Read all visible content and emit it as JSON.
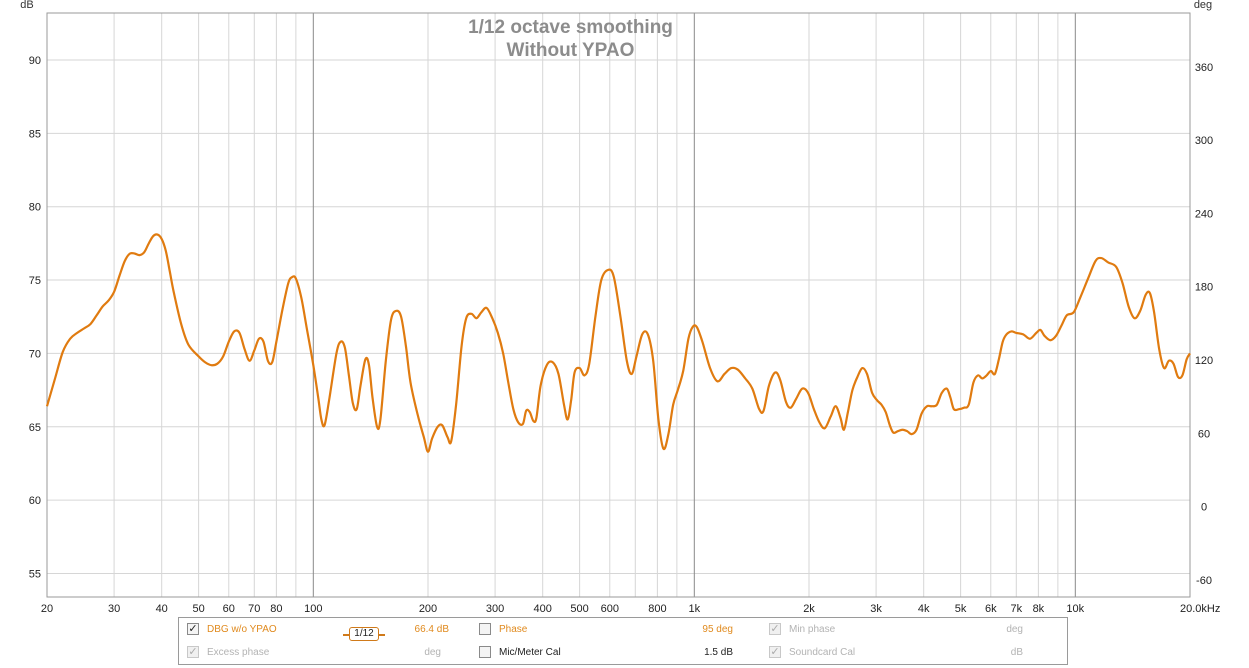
{
  "chart_data": {
    "type": "line",
    "title": "1/12 octave smoothing",
    "subtitle": "Without YPAO",
    "ylabel": "dB",
    "y2label": "deg",
    "xscale": "log",
    "xlim": [
      20,
      20000
    ],
    "ylim": [
      53.4,
      93.2
    ],
    "y2lim": [
      -74,
      404
    ],
    "yticks": [
      55,
      60,
      65,
      70,
      75,
      80,
      85,
      90
    ],
    "y2ticks": [
      -60,
      0,
      60,
      120,
      180,
      240,
      300,
      360
    ],
    "xticks": [
      {
        "v": 20,
        "l": "20"
      },
      {
        "v": 30,
        "l": "30"
      },
      {
        "v": 40,
        "l": "40"
      },
      {
        "v": 50,
        "l": "50"
      },
      {
        "v": 60,
        "l": "60"
      },
      {
        "v": 70,
        "l": "70"
      },
      {
        "v": 80,
        "l": "80"
      },
      {
        "v": 100,
        "l": "100"
      },
      {
        "v": 200,
        "l": "200"
      },
      {
        "v": 300,
        "l": "300"
      },
      {
        "v": 400,
        "l": "400"
      },
      {
        "v": 500,
        "l": "500"
      },
      {
        "v": 600,
        "l": "600"
      },
      {
        "v": 800,
        "l": "800"
      },
      {
        "v": 1000,
        "l": "1k"
      },
      {
        "v": 2000,
        "l": "2k"
      },
      {
        "v": 3000,
        "l": "3k"
      },
      {
        "v": 4000,
        "l": "4k"
      },
      {
        "v": 5000,
        "l": "5k"
      },
      {
        "v": 6000,
        "l": "6k"
      },
      {
        "v": 7000,
        "l": "7k"
      },
      {
        "v": 8000,
        "l": "8k"
      },
      {
        "v": 10000,
        "l": "10k"
      },
      {
        "v": 20000,
        "l": "20.0kHz"
      }
    ],
    "grid": true,
    "legend_position": "bottom",
    "series": [
      {
        "name": "DBG w/o YPAO",
        "color": "#e07b10",
        "points": [
          [
            20,
            66.4
          ],
          [
            21,
            68.3
          ],
          [
            22,
            70.1
          ],
          [
            23,
            71
          ],
          [
            24,
            71.4
          ],
          [
            25,
            71.7
          ],
          [
            26,
            72
          ],
          [
            27,
            72.6
          ],
          [
            28,
            73.2
          ],
          [
            29,
            73.6
          ],
          [
            30,
            74.2
          ],
          [
            31,
            75.3
          ],
          [
            32,
            76.3
          ],
          [
            33,
            76.8
          ],
          [
            34,
            76.8
          ],
          [
            35,
            76.7
          ],
          [
            36,
            76.9
          ],
          [
            37,
            77.5
          ],
          [
            38,
            78
          ],
          [
            39,
            78.1
          ],
          [
            40,
            77.8
          ],
          [
            41,
            77
          ],
          [
            42,
            75.6
          ],
          [
            43,
            74.2
          ],
          [
            45,
            72
          ],
          [
            47,
            70.6
          ],
          [
            50,
            69.8
          ],
          [
            52,
            69.4
          ],
          [
            54,
            69.2
          ],
          [
            56,
            69.3
          ],
          [
            58,
            69.8
          ],
          [
            60,
            70.8
          ],
          [
            62,
            71.5
          ],
          [
            64,
            71.4
          ],
          [
            66,
            70.3
          ],
          [
            68,
            69.5
          ],
          [
            70,
            70.2
          ],
          [
            72,
            71
          ],
          [
            74,
            70.8
          ],
          [
            76,
            69.5
          ],
          [
            78,
            69.4
          ],
          [
            80,
            70.8
          ],
          [
            83,
            73
          ],
          [
            86,
            74.8
          ],
          [
            88,
            75.2
          ],
          [
            90,
            75.1
          ],
          [
            93,
            73.8
          ],
          [
            96,
            71.8
          ],
          [
            100,
            69.2
          ],
          [
            103,
            67
          ],
          [
            105,
            65.5
          ],
          [
            107,
            65.1
          ],
          [
            110,
            66.8
          ],
          [
            115,
            70
          ],
          [
            118,
            70.8
          ],
          [
            121,
            70.4
          ],
          [
            124,
            68.5
          ],
          [
            127,
            66.6
          ],
          [
            130,
            66.2
          ],
          [
            133,
            67.8
          ],
          [
            137,
            69.6
          ],
          [
            140,
            69.2
          ],
          [
            143,
            67
          ],
          [
            147,
            65
          ],
          [
            150,
            65.5
          ],
          [
            155,
            69.5
          ],
          [
            160,
            72.3
          ],
          [
            165,
            72.9
          ],
          [
            170,
            72.5
          ],
          [
            175,
            70.5
          ],
          [
            180,
            68
          ],
          [
            188,
            65.8
          ],
          [
            195,
            64.3
          ],
          [
            200,
            63.3
          ],
          [
            205,
            64.2
          ],
          [
            212,
            65
          ],
          [
            218,
            65.1
          ],
          [
            225,
            64.3
          ],
          [
            230,
            64
          ],
          [
            237,
            66.5
          ],
          [
            245,
            70.5
          ],
          [
            252,
            72.4
          ],
          [
            260,
            72.7
          ],
          [
            268,
            72.4
          ],
          [
            276,
            72.8
          ],
          [
            285,
            73.1
          ],
          [
            295,
            72.4
          ],
          [
            305,
            71.4
          ],
          [
            315,
            70
          ],
          [
            325,
            68
          ],
          [
            335,
            66.2
          ],
          [
            345,
            65.3
          ],
          [
            355,
            65.2
          ],
          [
            362,
            66.1
          ],
          [
            370,
            66
          ],
          [
            378,
            65.4
          ],
          [
            385,
            65.6
          ],
          [
            395,
            67.8
          ],
          [
            410,
            69.2
          ],
          [
            425,
            69.4
          ],
          [
            440,
            68.6
          ],
          [
            455,
            66.5
          ],
          [
            465,
            65.5
          ],
          [
            475,
            66.8
          ],
          [
            485,
            68.7
          ],
          [
            500,
            69
          ],
          [
            515,
            68.5
          ],
          [
            530,
            69.3
          ],
          [
            550,
            72.5
          ],
          [
            570,
            75
          ],
          [
            595,
            75.7
          ],
          [
            615,
            75.2
          ],
          [
            640,
            72.5
          ],
          [
            665,
            69.5
          ],
          [
            685,
            68.6
          ],
          [
            705,
            69.8
          ],
          [
            730,
            71.3
          ],
          [
            755,
            71.3
          ],
          [
            780,
            69.5
          ],
          [
            805,
            65.5
          ],
          [
            830,
            63.5
          ],
          [
            855,
            64.5
          ],
          [
            880,
            66.5
          ],
          [
            905,
            67.5
          ],
          [
            935,
            68.8
          ],
          [
            965,
            71
          ],
          [
            990,
            71.8
          ],
          [
            1015,
            71.8
          ],
          [
            1050,
            70.8
          ],
          [
            1100,
            69
          ],
          [
            1150,
            68.1
          ],
          [
            1200,
            68.6
          ],
          [
            1250,
            69
          ],
          [
            1300,
            68.9
          ],
          [
            1360,
            68.3
          ],
          [
            1420,
            67.6
          ],
          [
            1480,
            66.2
          ],
          [
            1520,
            66.1
          ],
          [
            1570,
            67.8
          ],
          [
            1630,
            68.7
          ],
          [
            1680,
            68.2
          ],
          [
            1740,
            66.7
          ],
          [
            1790,
            66.3
          ],
          [
            1850,
            66.9
          ],
          [
            1920,
            67.6
          ],
          [
            1990,
            67.3
          ],
          [
            2060,
            66.2
          ],
          [
            2130,
            65.3
          ],
          [
            2200,
            64.9
          ],
          [
            2280,
            65.7
          ],
          [
            2350,
            66.4
          ],
          [
            2420,
            65.6
          ],
          [
            2470,
            64.8
          ],
          [
            2530,
            66
          ],
          [
            2600,
            67.5
          ],
          [
            2680,
            68.4
          ],
          [
            2760,
            69
          ],
          [
            2840,
            68.6
          ],
          [
            2930,
            67.3
          ],
          [
            3020,
            66.8
          ],
          [
            3100,
            66.5
          ],
          [
            3180,
            66
          ],
          [
            3260,
            65.1
          ],
          [
            3330,
            64.6
          ],
          [
            3420,
            64.7
          ],
          [
            3520,
            64.8
          ],
          [
            3620,
            64.7
          ],
          [
            3720,
            64.5
          ],
          [
            3830,
            64.8
          ],
          [
            3950,
            65.9
          ],
          [
            4080,
            66.4
          ],
          [
            4200,
            66.4
          ],
          [
            4330,
            66.5
          ],
          [
            4460,
            67.3
          ],
          [
            4600,
            67.6
          ],
          [
            4700,
            67
          ],
          [
            4800,
            66.2
          ],
          [
            4950,
            66.2
          ],
          [
            5100,
            66.3
          ],
          [
            5250,
            66.5
          ],
          [
            5400,
            68
          ],
          [
            5550,
            68.5
          ],
          [
            5700,
            68.3
          ],
          [
            5850,
            68.5
          ],
          [
            6000,
            68.8
          ],
          [
            6150,
            68.6
          ],
          [
            6300,
            69.6
          ],
          [
            6450,
            70.8
          ],
          [
            6600,
            71.3
          ],
          [
            6800,
            71.5
          ],
          [
            7000,
            71.4
          ],
          [
            7300,
            71.3
          ],
          [
            7600,
            71
          ],
          [
            7900,
            71.4
          ],
          [
            8100,
            71.6
          ],
          [
            8300,
            71.2
          ],
          [
            8600,
            70.9
          ],
          [
            8900,
            71.2
          ],
          [
            9200,
            71.9
          ],
          [
            9500,
            72.6
          ],
          [
            9900,
            72.8
          ],
          [
            10300,
            73.8
          ],
          [
            10800,
            75.1
          ],
          [
            11300,
            76.3
          ],
          [
            11700,
            76.5
          ],
          [
            12200,
            76.2
          ],
          [
            12800,
            75.9
          ],
          [
            13300,
            74.8
          ],
          [
            13800,
            73.2
          ],
          [
            14300,
            72.4
          ],
          [
            14800,
            72.9
          ],
          [
            15300,
            74
          ],
          [
            15700,
            74.1
          ],
          [
            16100,
            72.8
          ],
          [
            16600,
            70.3
          ],
          [
            17100,
            69
          ],
          [
            17600,
            69.5
          ],
          [
            18100,
            69.3
          ],
          [
            18600,
            68.4
          ],
          [
            19100,
            68.5
          ],
          [
            19600,
            69.6
          ],
          [
            20000,
            70
          ]
        ]
      }
    ]
  },
  "legend": {
    "row1": {
      "trace_label": "DBG w/o YPAO",
      "smoothing_label": "1/12",
      "trace_value": "66.4 dB",
      "phase_label": "Phase",
      "phase_value": "95 deg",
      "min_phase_label": "Min phase",
      "min_phase_value": "deg"
    },
    "row2": {
      "excess_label": "Excess phase",
      "excess_value": "deg",
      "mic_label": "Mic/Meter Cal",
      "mic_value": "1.5 dB",
      "soundcard_label": "Soundcard Cal",
      "soundcard_value": "dB"
    }
  }
}
